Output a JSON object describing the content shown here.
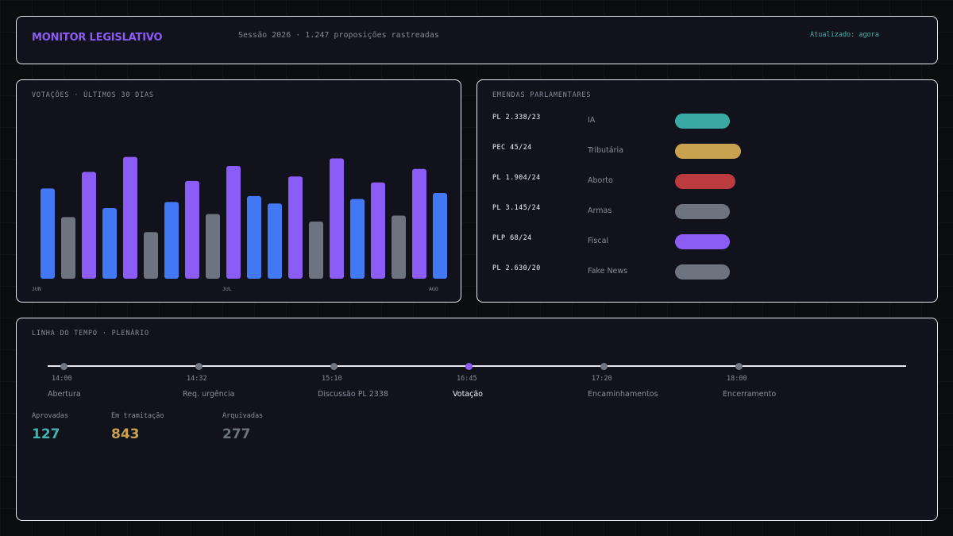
{
  "header": {
    "title": "MONITOR LEGISLATIVO",
    "session_info": "Sessão 2026 · 1.247 proposições rastreadas",
    "updated": "Atualizado: agora"
  },
  "votes": {
    "title": "VOTAÇÕES · ÚLTIMOS 30 DIAS"
  },
  "chart_data": {
    "type": "bar",
    "title": "VOTAÇÕES · ÚLTIMOS 30 DIAS",
    "x_tick_labels": [
      "JUN",
      "JUL",
      "AGO"
    ],
    "values": [
      60,
      41,
      71,
      47,
      81,
      31,
      51,
      65,
      43,
      75,
      55,
      50,
      68,
      38,
      80,
      53,
      64,
      42,
      73,
      57
    ],
    "colors": [
      "#4479f6",
      "#6d737f",
      "#8b5cf6",
      "#4479f6",
      "#8b5cf6",
      "#6d737f",
      "#4479f6",
      "#8b5cf6",
      "#6d737f",
      "#8b5cf6",
      "#4479f6",
      "#4479f6",
      "#8b5cf6",
      "#6d737f",
      "#8b5cf6",
      "#4479f6",
      "#8b5cf6",
      "#6d737f",
      "#8b5cf6",
      "#4479f6"
    ],
    "ylim": [
      0,
      85
    ],
    "grid": false
  },
  "amendments": {
    "title": "EMENDAS PARLAMENTARES",
    "items": [
      {
        "code": "PL 2.338/23",
        "topic": "IA",
        "color": "#3aa9a3",
        "level": 69
      },
      {
        "code": "PEC 45/24",
        "topic": "Tributária",
        "color": "#c8a24e",
        "level": 83
      },
      {
        "code": "PL 1.904/24",
        "topic": "Aborto",
        "color": "#bc3b3e",
        "level": 76
      },
      {
        "code": "PL 3.145/24",
        "topic": "Armas",
        "color": "#6d737f",
        "level": 69
      },
      {
        "code": "PLP 68/24",
        "topic": "Fiscal",
        "color": "#8b5cf6",
        "level": 69
      },
      {
        "code": "PL 2.630/20",
        "topic": "Fake News",
        "color": "#6d737f",
        "level": 69
      }
    ]
  },
  "timeline": {
    "title": "LINHA DO TEMPO · PLENÁRIO",
    "events": [
      {
        "time": "14:00",
        "label": "Abertura",
        "active": false
      },
      {
        "time": "14:32",
        "label": "Req. urgência",
        "active": false
      },
      {
        "time": "15:10",
        "label": "Discussão PL 2338",
        "active": false
      },
      {
        "time": "16:45",
        "label": "Votação",
        "active": true
      },
      {
        "time": "17:20",
        "label": "Encaminhamentos",
        "active": false
      },
      {
        "time": "18:00",
        "label": "Encerramento",
        "active": false
      }
    ]
  },
  "stats": [
    {
      "label": "Aprovadas",
      "value": "127",
      "color": "#3fb5ac"
    },
    {
      "label": "Em tramitação",
      "value": "843",
      "color": "#c8a24e"
    },
    {
      "label": "Arquivadas",
      "value": "277",
      "color": "#6d737f"
    }
  ]
}
